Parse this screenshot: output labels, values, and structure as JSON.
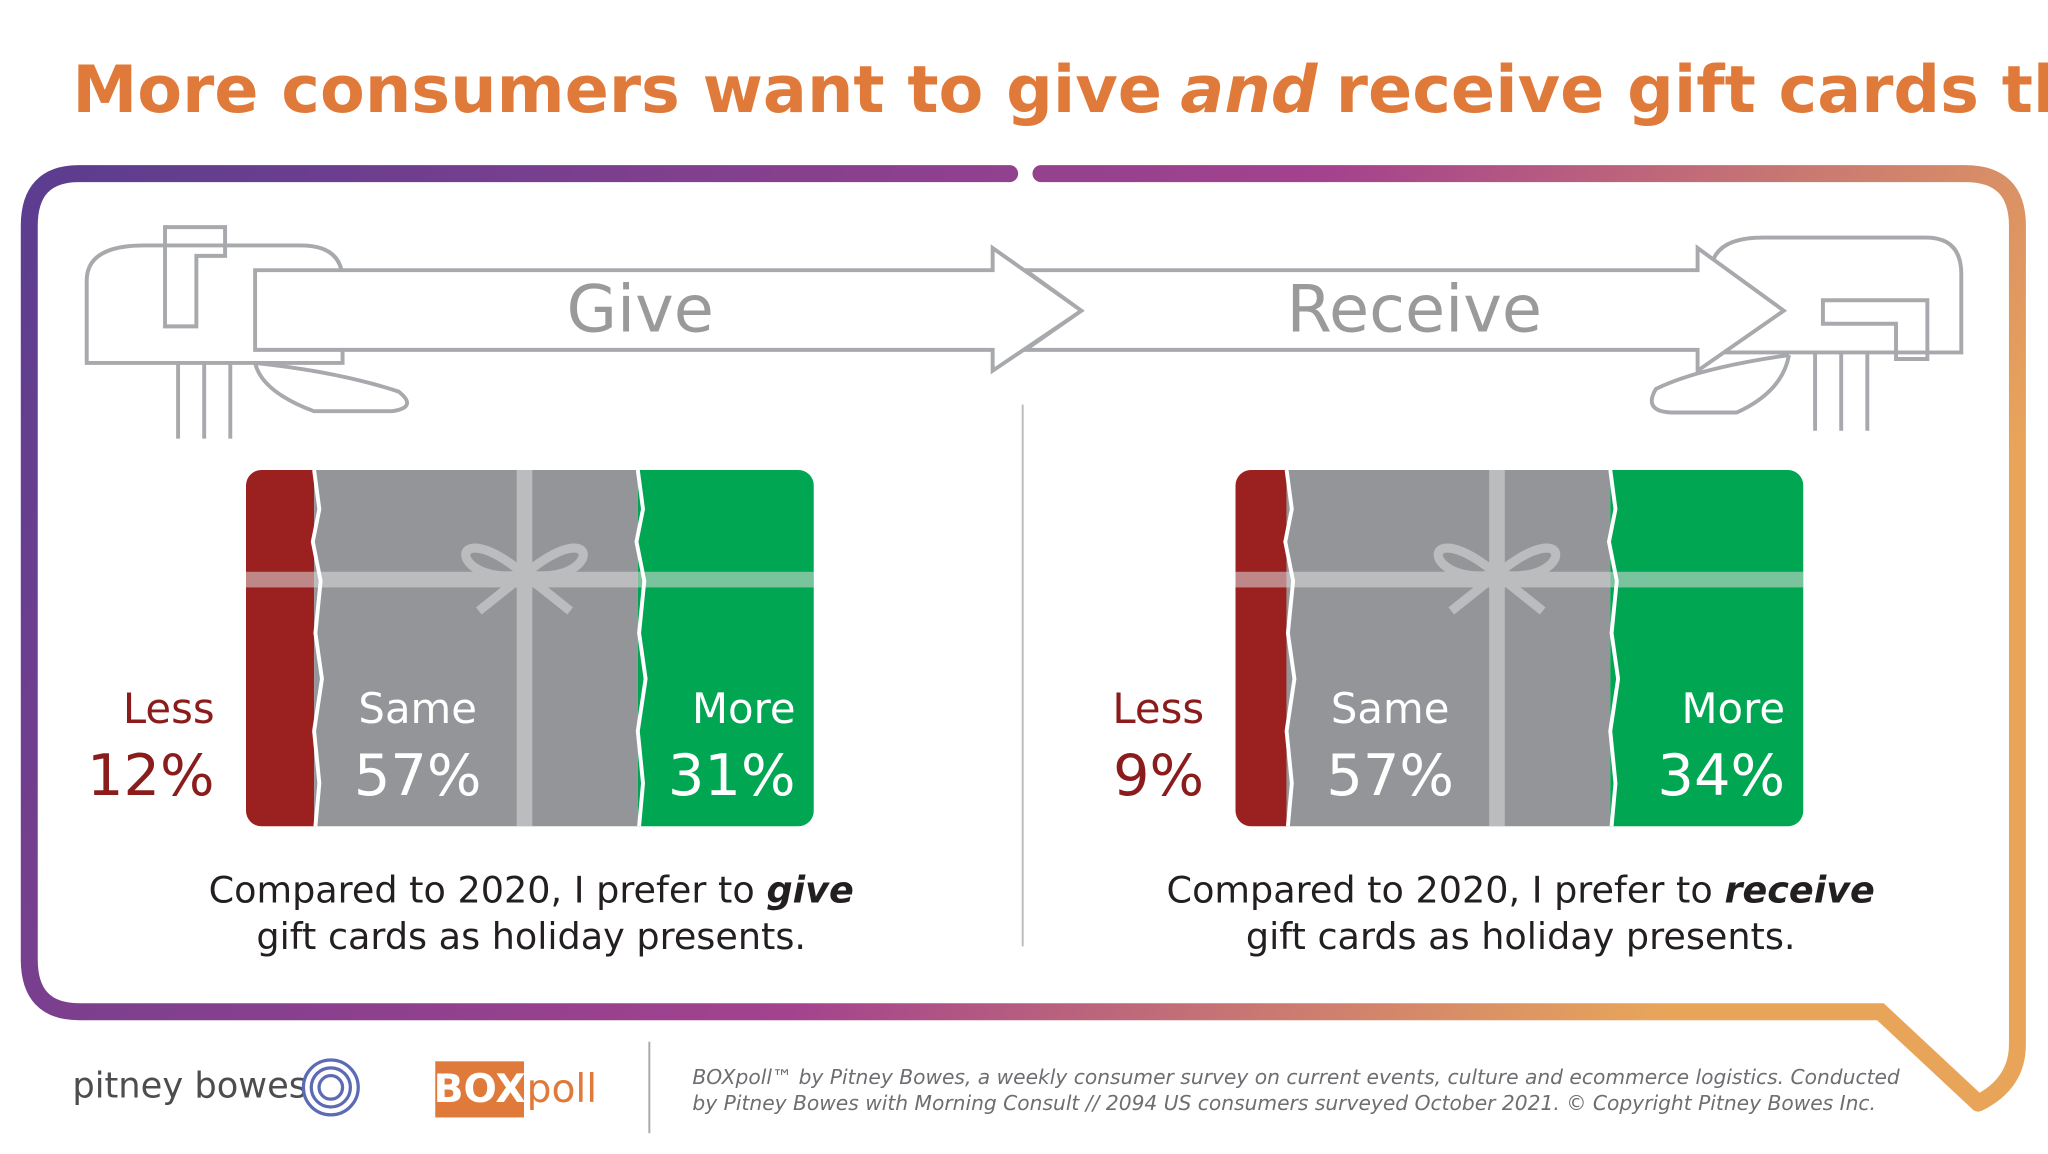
{
  "title": [
    "More consumers want to give",
    "and",
    "receive gift cards this year"
  ],
  "chart_data": [
    {
      "type": "stacked-bar",
      "title": "Give",
      "categories": [
        "Less",
        "Same",
        "More"
      ],
      "values": [
        12,
        57,
        31
      ],
      "value_labels": [
        "12%",
        "57%",
        "31%"
      ],
      "colors": [
        "#9b2020",
        "#939598",
        "#00a651"
      ],
      "caption": [
        "Compared to 2020, I prefer to",
        "give",
        "gift cards as holiday presents."
      ]
    },
    {
      "type": "stacked-bar",
      "title": "Receive",
      "categories": [
        "Less",
        "Same",
        "More"
      ],
      "values": [
        9,
        57,
        34
      ],
      "value_labels": [
        "9%",
        "57%",
        "34%"
      ],
      "colors": [
        "#9b2020",
        "#939598",
        "#00a651"
      ],
      "caption": [
        "Compared to 2020, I prefer to",
        "receive",
        "gift cards as holiday presents."
      ]
    }
  ],
  "footer": {
    "brand": "pitney bowes",
    "poll_logo": [
      "BOX",
      "poll"
    ],
    "note": [
      "BOXpoll™ by Pitney Bowes, a weekly consumer survey on current events, culture and ecommerce logistics. Conducted",
      "by Pitney Bowes with Morning Consult  // 2094 US consumers surveyed October 2021. © Copyright Pitney Bowes Inc."
    ]
  }
}
